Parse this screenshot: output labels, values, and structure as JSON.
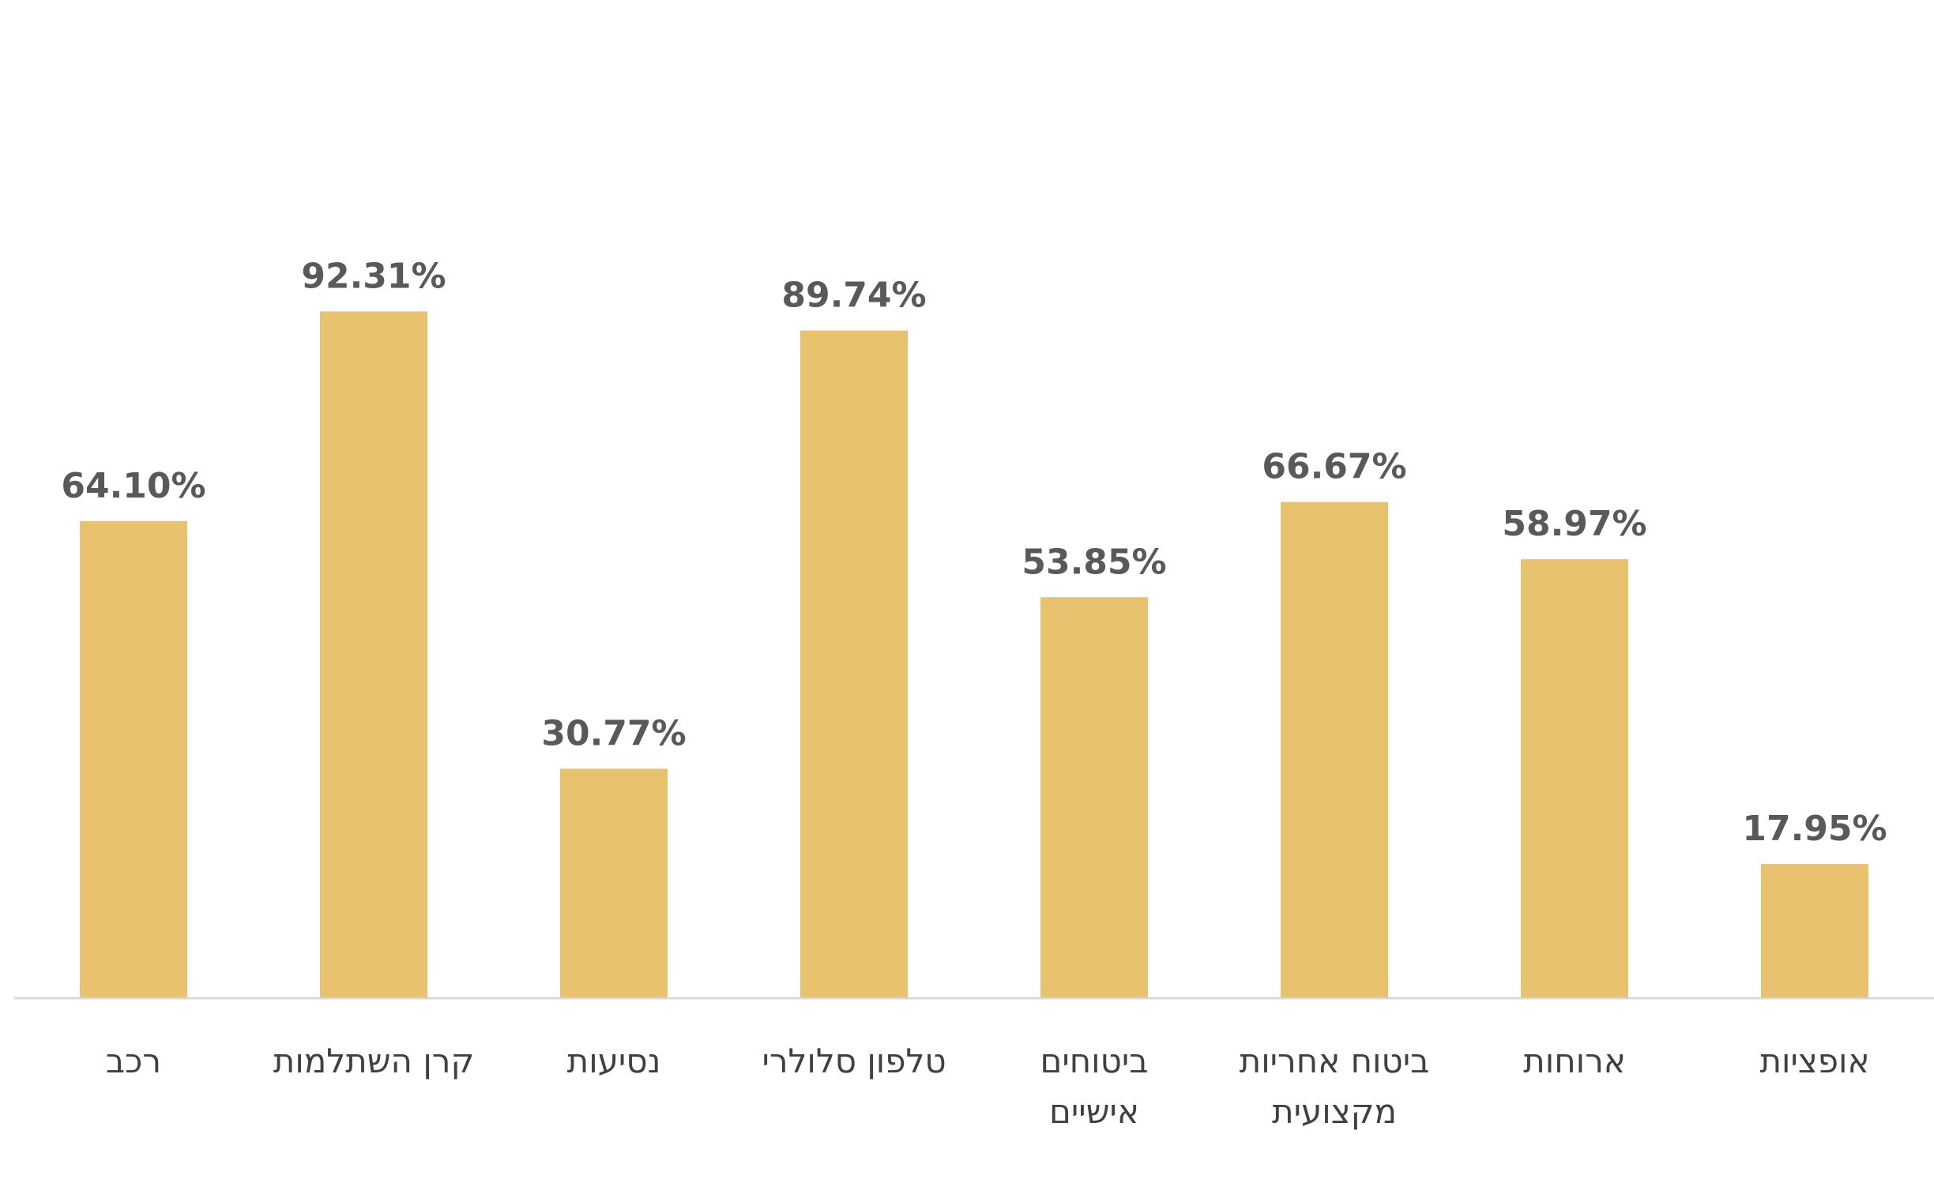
{
  "chart_data": {
    "type": "bar",
    "categories": [
      [
        "רכב"
      ],
      [
        "קרן השתלמות"
      ],
      [
        "נסיעות"
      ],
      [
        "טלפון סלולרי"
      ],
      [
        "ביטוחים",
        "אישיים"
      ],
      [
        "ביטוח אחריות",
        "מקצועית"
      ],
      [
        "ארוחות"
      ],
      [
        "אופציות"
      ]
    ],
    "values": [
      64.1,
      92.31,
      30.77,
      89.74,
      53.85,
      66.67,
      58.97,
      17.95
    ],
    "value_labels": [
      "64.10%",
      "92.31%",
      "30.77%",
      "89.74%",
      "53.85%",
      "66.67%",
      "58.97%",
      "17.95%"
    ],
    "ylim": [
      0,
      100
    ],
    "grid": false,
    "legend": "none",
    "colors": {
      "bar": "#E8C26E",
      "label": "#595959",
      "category": "#404040",
      "axis": "#D9D9D9"
    }
  }
}
